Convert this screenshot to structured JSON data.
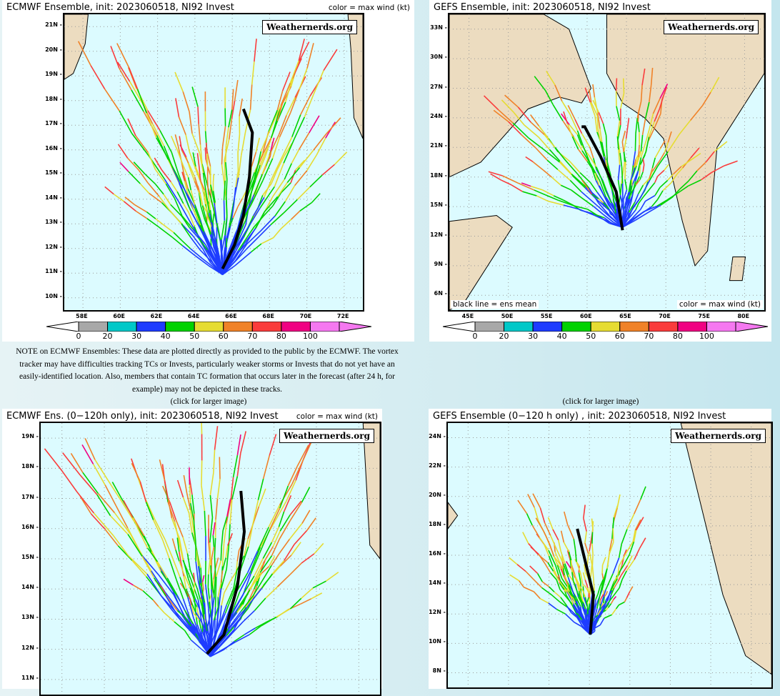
{
  "colorbar": {
    "labels": [
      "0",
      "20",
      "30",
      "40",
      "50",
      "60",
      "70",
      "80",
      "100"
    ],
    "colors": [
      "#a8a8a8",
      "#00c8c8",
      "#1e3cff",
      "#00d200",
      "#e6dc32",
      "#f08228",
      "#fa3c3c",
      "#f00082",
      "#f578f0"
    ]
  },
  "watermark": "Weathernerds.org",
  "panels": [
    {
      "title": "ECMWF  Ensemble,  init:  2023060518,  NI92  Invest",
      "legend": "color  =  max  wind  (kt)",
      "xticks": [
        "58E",
        "60E",
        "62E",
        "64E",
        "66E",
        "68E",
        "70E",
        "72E"
      ],
      "yticks": [
        "21N",
        "20N",
        "19N",
        "18N",
        "17N",
        "16N",
        "15N",
        "14N",
        "13N",
        "12N",
        "11N",
        "10N"
      ]
    },
    {
      "title": "GEFS  Ensemble,  init:  2023060518,  NI92  Invest",
      "legend": "color  =  max  wind  (kt)",
      "mean_label": "black  line  =  ens  mean",
      "xticks": [
        "45E",
        "50E",
        "55E",
        "60E",
        "65E",
        "70E",
        "75E",
        "80E"
      ],
      "yticks": [
        "33N",
        "30N",
        "27N",
        "24N",
        "21N",
        "18N",
        "15N",
        "12N",
        "9N",
        "6N"
      ]
    },
    {
      "title": "ECMWF  Ens.  (0−120h  only),  init:  2023060518,  NI92  Invest",
      "legend": "color  =  max  wind  (kt)",
      "yticks": [
        "19N",
        "18N",
        "17N",
        "16N",
        "15N",
        "14N",
        "13N",
        "12N",
        "11N"
      ]
    },
    {
      "title": "GEFS  Ensemble  (0−120  h  only)  ,  init:  2023060518,  NI92  Invest",
      "yticks": [
        "24N",
        "22N",
        "20N",
        "18N",
        "16N",
        "14N",
        "12N",
        "10N",
        "8N"
      ]
    }
  ],
  "note": "NOTE on ECMWF Ensembles: These data are plotted directly as provided to the public by the ECMWF. The vortex tracker may have difficulties tracking TCs or Invests, particularly weaker storms or Invests that do not yet have an easily-identified location. Also, members that contain TC formation that occurs later in the forecast (after 24 h, for example) may not be depicted in these tracks.",
  "click_label": "(click for larger image)"
}
